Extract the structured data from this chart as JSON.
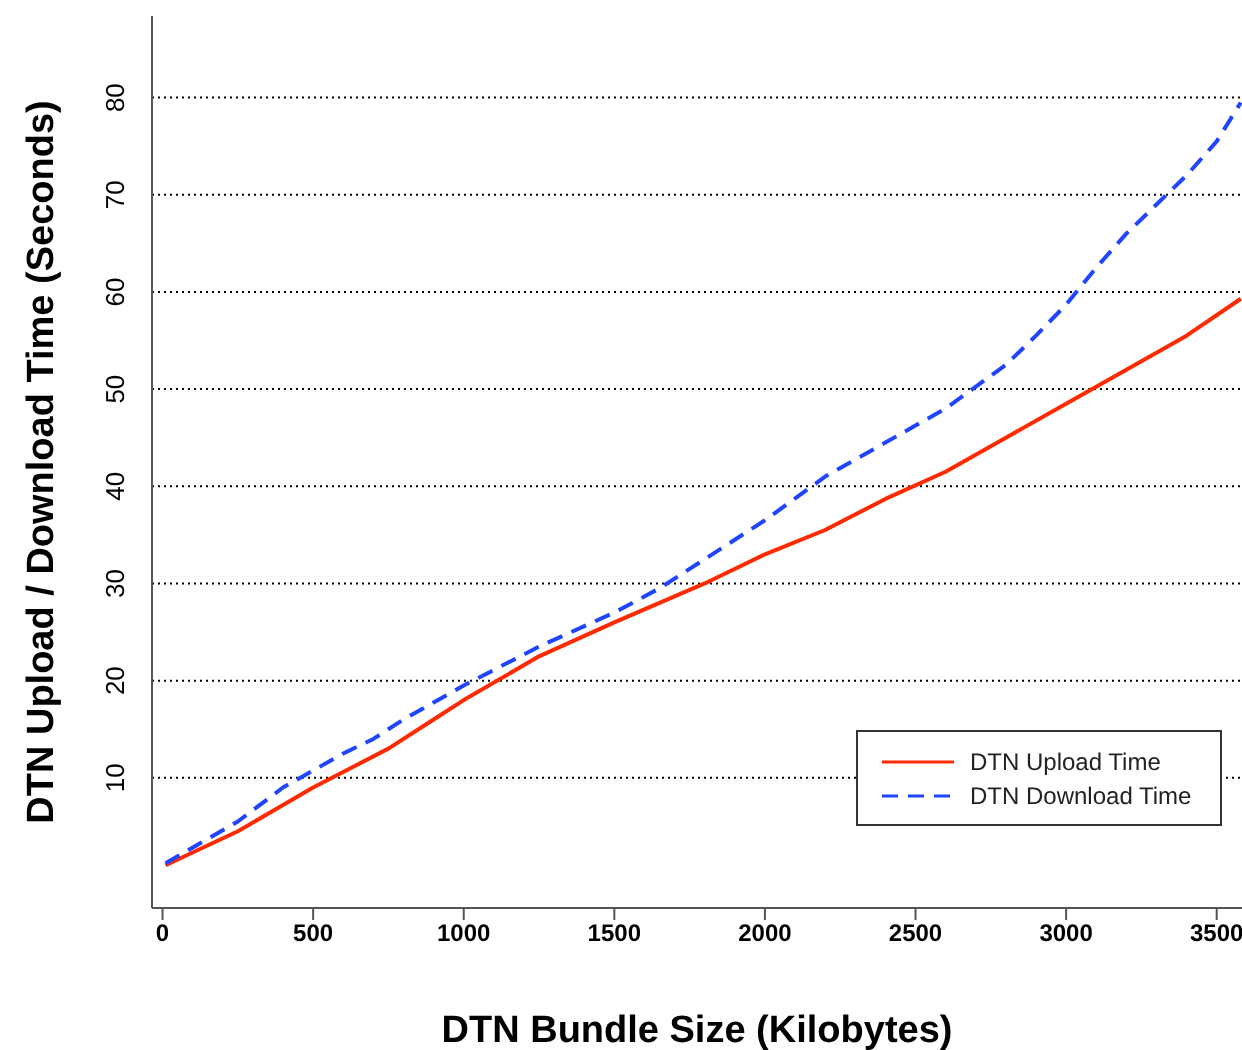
{
  "chart_data": {
    "type": "line",
    "xlabel": "DTN Bundle Size (Kilobytes)",
    "ylabel": "DTN Upload / Download Time (Seconds)",
    "xlim": [
      -35,
      3584
    ],
    "xticks": [
      0,
      500,
      1000,
      1500,
      2000,
      2500,
      3000,
      3500
    ],
    "ylim": [
      -3.4,
      88.4
    ],
    "yticks": [
      10,
      20,
      30,
      40,
      50,
      60,
      70,
      80
    ],
    "grid": "y",
    "legend": "bottom right",
    "marker": "none",
    "series": [
      {
        "name": "DTN Upload Time",
        "color": "#ff2a00",
        "line_style": "solid",
        "x": [
          10,
          250,
          500,
          750,
          900,
          1000,
          1250,
          1500,
          1800,
          2000,
          2200,
          2400,
          2600,
          2800,
          3000,
          3200,
          3400,
          3580
        ],
        "values": [
          1,
          4.5,
          9,
          13,
          16,
          18,
          22.5,
          26,
          30,
          33,
          35.5,
          38.7,
          41.5,
          45,
          48.5,
          52,
          55.5,
          59.3
        ]
      },
      {
        "name": "DTN Download Time",
        "color": "#1f45ff",
        "line_style": "dashed",
        "x": [
          10,
          250,
          400,
          600,
          700,
          800,
          1000,
          1250,
          1500,
          1650,
          1800,
          2000,
          2200,
          2400,
          2600,
          2800,
          2900,
          3000,
          3100,
          3200,
          3300,
          3400,
          3500,
          3580
        ],
        "values": [
          1.2,
          5.5,
          9,
          12.5,
          14,
          16,
          19.5,
          23.5,
          27,
          29.5,
          32.5,
          36.5,
          41,
          44.5,
          48,
          52.5,
          55.5,
          58.7,
          62.5,
          66,
          69,
          72,
          75.5,
          79.5
        ]
      }
    ]
  }
}
